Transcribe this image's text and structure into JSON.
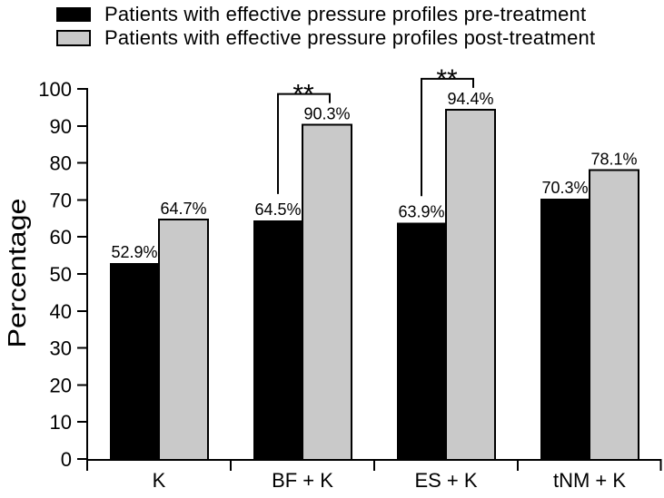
{
  "legend": {
    "items": [
      {
        "label": "Patients with effective pressure profiles pre-treatment",
        "color": "#000000"
      },
      {
        "label": "Patients with effective pressure profiles post-treatment",
        "color": "#c9c9c9"
      }
    ]
  },
  "chart_data": {
    "type": "bar",
    "title": "",
    "xlabel": "",
    "ylabel": "Percentage",
    "ylim": [
      0,
      100
    ],
    "ytick_step": 10,
    "grid": false,
    "legend_position": "top-left",
    "categories": [
      "K",
      "BF + K",
      "ES + K",
      "tNM + K"
    ],
    "series": [
      {
        "name": "Patients with effective pressure profiles pre-treatment",
        "color": "#000000",
        "values": [
          52.9,
          64.5,
          63.9,
          70.3
        ],
        "labels": [
          "52.9%",
          "64.5%",
          "63.9%",
          "70.3%"
        ]
      },
      {
        "name": "Patients with effective pressure profiles post-treatment",
        "color": "#c9c9c9",
        "values": [
          64.7,
          90.3,
          94.4,
          78.1
        ],
        "labels": [
          "64.7%",
          "90.3%",
          "94.4%",
          "78.1%"
        ]
      }
    ],
    "annotations": [
      {
        "category": "BF + K",
        "text": "**"
      },
      {
        "category": "ES + K",
        "text": "**"
      }
    ]
  }
}
